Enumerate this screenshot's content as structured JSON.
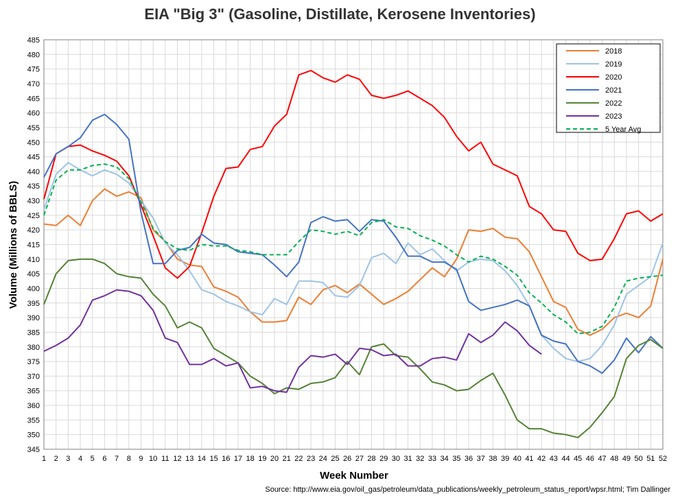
{
  "chart_data": {
    "type": "line",
    "title": "EIA \"Big 3\" (Gasoline, Distillate, Kerosene Inventories)",
    "xlabel": "Week Number",
    "ylabel": "Volume (Millions of BBLS)",
    "xlim": [
      1,
      52
    ],
    "ylim": [
      345,
      485
    ],
    "ytick_step": 5,
    "grid": true,
    "legend_position": "top-right",
    "source": "Source: http://www.eia.gov/oil_gas/petroleum/data_publications/weekly_petroleum_status_report/wpsr.html; Tim Dallinger",
    "series": [
      {
        "name": "2018",
        "color": "#ed7d31",
        "dashed": false,
        "values": [
          422,
          421.5,
          425,
          421.5,
          430,
          434,
          431.5,
          433,
          431,
          420,
          416,
          410,
          408,
          407.5,
          400.5,
          399,
          397,
          392,
          388.5,
          388.5,
          389,
          397,
          394.5,
          399.5,
          401,
          398.5,
          401.5,
          398,
          394.5,
          396.5,
          399,
          403,
          407,
          404,
          410,
          420,
          419.5,
          420.5,
          417.5,
          417,
          412.5,
          404,
          395.5,
          393.5,
          386,
          384,
          386,
          390,
          391.5,
          390,
          394,
          410
        ]
      },
      {
        "name": "2019",
        "color": "#9dc3e6",
        "dashed": false,
        "values": [
          427,
          439,
          443,
          440.5,
          438.5,
          440.5,
          439,
          436,
          430,
          424,
          415.5,
          411.5,
          406,
          399.5,
          398,
          395.5,
          394,
          392,
          391,
          396.5,
          394.5,
          402.5,
          402.5,
          402,
          397.5,
          397,
          401,
          410.5,
          412,
          408.5,
          415.5,
          411.5,
          413.5,
          409.5,
          406,
          409,
          410,
          409.5,
          406,
          401,
          394,
          384,
          379.5,
          376,
          375,
          376,
          380.5,
          387.5,
          398,
          401,
          404,
          415.5
        ]
      },
      {
        "name": "2020",
        "color": "#ff0000",
        "dashed": false,
        "values": [
          430.5,
          446,
          448.5,
          449,
          447,
          445.5,
          443.5,
          438.5,
          428.5,
          418,
          407,
          403.5,
          407.5,
          419,
          431.5,
          441,
          441.5,
          447.5,
          448.5,
          455.5,
          459.5,
          473,
          474.5,
          472,
          470.5,
          473,
          471.5,
          466,
          465,
          466,
          467.5,
          465,
          462.5,
          458.5,
          452,
          447,
          450,
          442.5,
          440.5,
          438.5,
          428,
          425.5,
          420,
          419.5,
          412,
          409.5,
          410,
          417,
          425.5,
          426.5,
          423,
          425.5
        ]
      },
      {
        "name": "2021",
        "color": "#4472c4",
        "dashed": false,
        "values": [
          438,
          446,
          448.5,
          451.5,
          457.5,
          459.5,
          456,
          451,
          426,
          408.5,
          408.5,
          413,
          414,
          418.5,
          415.5,
          415,
          412.5,
          412,
          411.5,
          408,
          404,
          409,
          422.5,
          424.5,
          423,
          423.5,
          419.5,
          423.5,
          423,
          417.5,
          411,
          411,
          409,
          409,
          406.5,
          395.5,
          392.5,
          393.5,
          394.5,
          396,
          394,
          384,
          382,
          381,
          375,
          373.5,
          371,
          375.5,
          383,
          378,
          383.5,
          379.5
        ]
      },
      {
        "name": "2022",
        "color": "#548235",
        "dashed": false,
        "values": [
          394.5,
          405,
          409.5,
          410,
          410,
          408.5,
          405,
          404,
          403.5,
          398,
          394,
          386.5,
          388.5,
          386.5,
          379.5,
          377,
          374.5,
          370,
          367.5,
          364,
          366,
          365.5,
          367.5,
          368,
          369.5,
          375,
          370.5,
          380,
          381,
          377,
          376.5,
          372.5,
          368,
          367,
          365,
          365.5,
          368.5,
          371,
          363.5,
          355,
          352,
          352,
          350.5,
          350,
          349,
          352.5,
          357.5,
          363,
          376,
          380.5,
          382.5,
          379.5
        ]
      },
      {
        "name": "2023",
        "color": "#7030a0",
        "dashed": false,
        "values": [
          378.5,
          380.5,
          383,
          387.5,
          396,
          397.5,
          399.5,
          399,
          397.5,
          392.5,
          383,
          381.5,
          374,
          374,
          376,
          373.5,
          374.5,
          366,
          366.5,
          365,
          364.5,
          373,
          377,
          376.5,
          377.5,
          374,
          379.5,
          379,
          377,
          377.5,
          373.5,
          373.5,
          376,
          376.5,
          375.5,
          384.5,
          381.5,
          384,
          388.5,
          385.5,
          380.5,
          377.5
        ]
      },
      {
        "name": "5 Year Avg",
        "color": "#00b050",
        "dashed": true,
        "values": [
          425,
          437,
          440.5,
          440.5,
          442,
          442.5,
          441.5,
          437.5,
          429.5,
          420.5,
          416,
          413.5,
          413,
          415,
          414.5,
          414.5,
          413,
          412.5,
          411.5,
          411.5,
          411.5,
          416,
          420,
          419.5,
          418.5,
          419.5,
          418,
          422.5,
          423.5,
          421,
          420.5,
          418,
          416.5,
          414.5,
          411.5,
          409,
          411,
          410,
          407.5,
          404.5,
          398.5,
          395,
          391,
          388.5,
          384.5,
          385,
          387,
          393.5,
          402.5,
          403.5,
          404,
          404.5
        ]
      }
    ]
  }
}
